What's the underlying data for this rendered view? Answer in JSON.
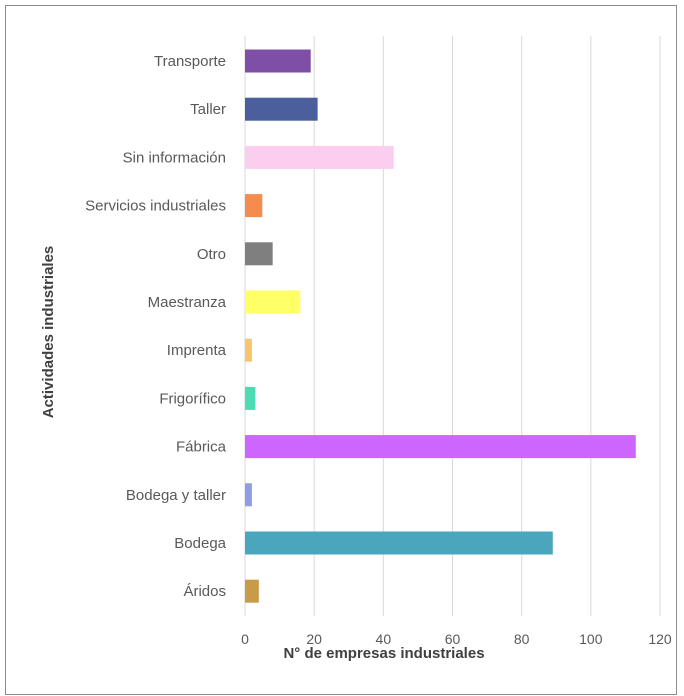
{
  "chart_data": {
    "type": "bar",
    "orientation": "horizontal",
    "xlabel": "N°  de empresas industriales",
    "ylabel": "Actividades industriales",
    "xlim": [
      0,
      120
    ],
    "xticks": [
      0,
      20,
      40,
      60,
      80,
      100,
      120
    ],
    "grid": true,
    "legend": "none",
    "categories": [
      "Transporte",
      "Taller",
      "Sin información",
      "Servicios industriales",
      "Otro",
      "Maestranza",
      "Imprenta",
      "Frigorífico",
      "Fábrica",
      "Bodega y taller",
      "Bodega",
      "Áridos"
    ],
    "values": [
      19,
      21,
      43,
      5,
      8,
      16,
      2,
      3,
      113,
      2,
      89,
      4
    ],
    "colors": [
      "#7f4fa8",
      "#4a5f9c",
      "#fbcdee",
      "#f58b4c",
      "#7f7f7f",
      "#ffff66",
      "#f8c56a",
      "#4ddbb3",
      "#cc66ff",
      "#8e9de6",
      "#4aa6bd",
      "#c89b4a"
    ]
  }
}
